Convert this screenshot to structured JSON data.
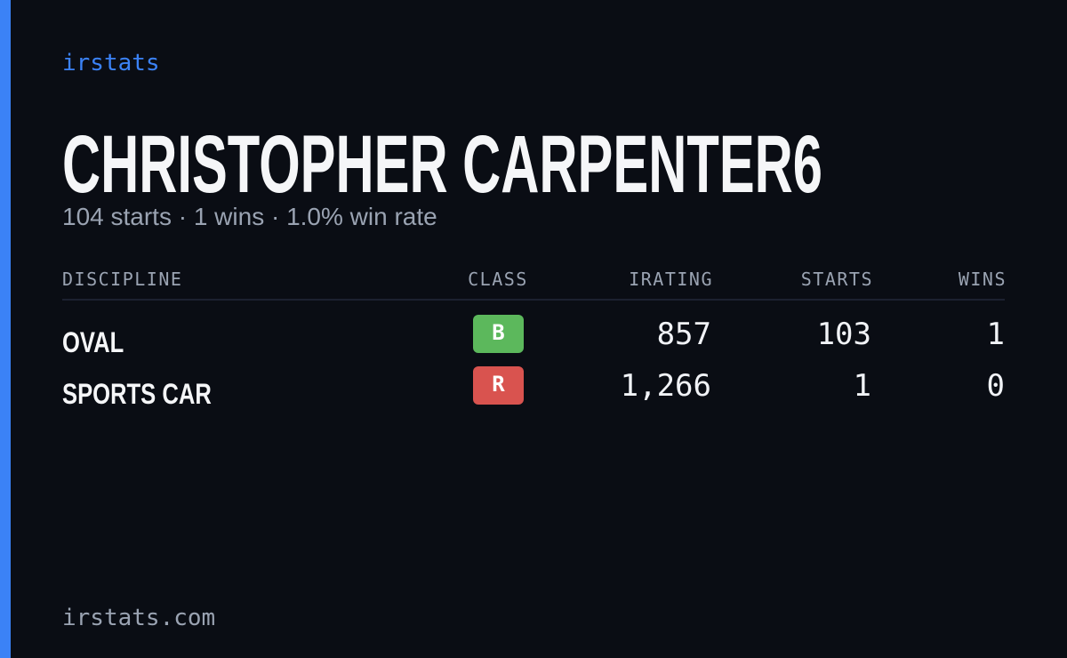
{
  "brand": "irstats",
  "player": {
    "name": "CHRISTOPHER CARPENTER6",
    "summary": "104 starts · 1 wins · 1.0% win rate"
  },
  "table": {
    "headers": [
      "DISCIPLINE",
      "CLASS",
      "IRATING",
      "STARTS",
      "WINS"
    ],
    "rows": [
      [
        "OVAL",
        "B",
        "857",
        "103",
        "1"
      ],
      [
        "SPORTS CAR",
        "R",
        "1,266",
        "1",
        "0"
      ]
    ]
  },
  "footer": "irstats.com"
}
